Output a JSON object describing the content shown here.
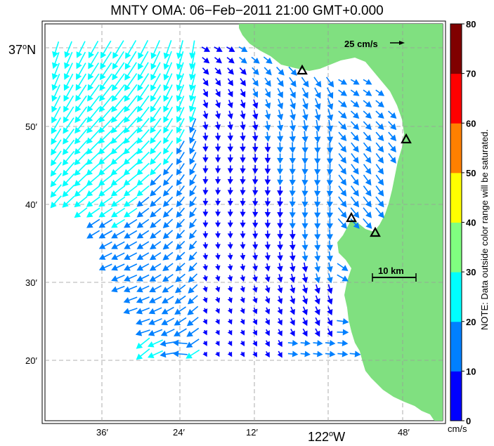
{
  "title": "MNTY OMA: 06−Feb−2011 21:00 GMT+0.000",
  "axes": {
    "lat_labels": [
      {
        "text": "37",
        "deg": "o",
        "hemi": "N",
        "lat": 37.0
      },
      {
        "text": "50′",
        "lat": 36.8333
      },
      {
        "text": "40′",
        "lat": 36.6667
      },
      {
        "text": "30′",
        "lat": 36.5
      },
      {
        "text": "20′",
        "lat": 36.3333
      }
    ],
    "lon_labels": [
      {
        "text": "36′",
        "lon": -122.4
      },
      {
        "text": "24′",
        "lon": -122.2
      },
      {
        "text": "12′",
        "lon": -122.0
      },
      {
        "text": "122",
        "deg": "o",
        "hemi": "W",
        "lon": -121.8
      },
      {
        "text": "48′",
        "lon": -121.6
      }
    ]
  },
  "reference_vector_label": "25 cm/s",
  "scale_bar_label": "10 km",
  "colorbar": {
    "ticks": [
      "0",
      "10",
      "20",
      "30",
      "40",
      "50",
      "60",
      "70",
      "80"
    ],
    "colors": [
      "#0000ff",
      "#0080ff",
      "#00ffff",
      "#80ff80",
      "#ffff00",
      "#ff8000",
      "#ff0000",
      "#800000"
    ],
    "unit": "cm/s",
    "note": "NOTE: Data outside color range will be saturated."
  },
  "land_color": "#80e080",
  "stations_count": 4
}
